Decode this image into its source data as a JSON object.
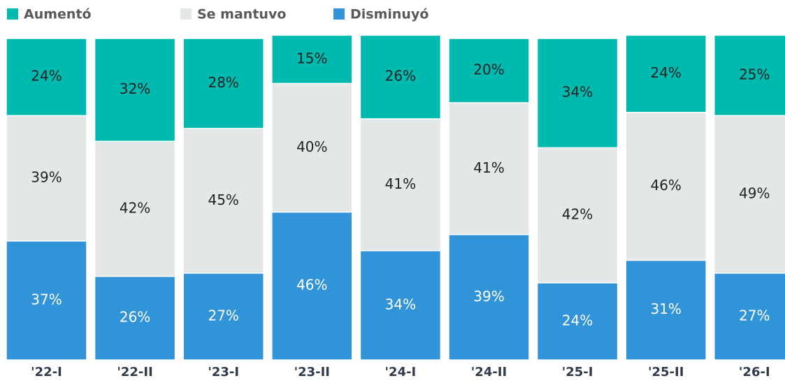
{
  "chart_data": {
    "type": "stacked_bar",
    "categories": [
      "'22-I",
      "'22-II",
      "'23-I",
      "'23-II",
      "'24-I",
      "'24-II",
      "'25-I",
      "'25-II",
      "'26-I"
    ],
    "series": [
      {
        "name": "Aumentó",
        "color": "#00bab0",
        "values": [
          24,
          32,
          28,
          15,
          26,
          20,
          34,
          24,
          25
        ],
        "value_labels": [
          "24%",
          "32%",
          "28%",
          "15%",
          "26%",
          "20%",
          "34%",
          "24%",
          "25%"
        ]
      },
      {
        "name": "Se mantuvo",
        "color": "#e3e7e7",
        "values": [
          39,
          42,
          45,
          40,
          41,
          41,
          42,
          46,
          49
        ],
        "value_labels": [
          "39%",
          "42%",
          "45%",
          "40%",
          "41%",
          "41%",
          "42%",
          "46%",
          "49%"
        ]
      },
      {
        "name": "Disminuyó",
        "color": "#3193d8",
        "values": [
          37,
          26,
          27,
          46,
          34,
          39,
          24,
          31,
          27
        ],
        "value_labels": [
          "37%",
          "26%",
          "27%",
          "46%",
          "34%",
          "39%",
          "24%",
          "31%",
          "27%"
        ]
      }
    ],
    "ylim": [
      0,
      100
    ]
  }
}
